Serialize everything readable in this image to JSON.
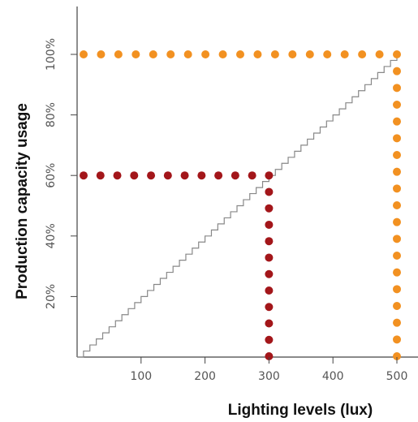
{
  "chart_data": {
    "type": "line",
    "xlabel": "Lighting levels (lux)",
    "ylabel": "Production capacity usage",
    "xlim": [
      0,
      520
    ],
    "ylim": [
      0,
      104
    ],
    "x_ticks": [
      {
        "value": 100,
        "label": "100"
      },
      {
        "value": 200,
        "label": "200"
      },
      {
        "value": 300,
        "label": "300"
      },
      {
        "value": 400,
        "label": "400"
      },
      {
        "value": 500,
        "label": "500"
      }
    ],
    "y_ticks": [
      {
        "value": 20,
        "label": "20%"
      },
      {
        "value": 40,
        "label": "40%"
      },
      {
        "value": 60,
        "label": "60%"
      },
      {
        "value": 80,
        "label": "80%"
      },
      {
        "value": 100,
        "label": "100%"
      }
    ],
    "grid": false,
    "legend": "none",
    "series": [
      {
        "style": "staircase",
        "color": "#888888",
        "points": [
          {
            "x": 0,
            "y": 0
          },
          {
            "x": 500,
            "y": 100
          }
        ]
      },
      {
        "style": "dotted-guide",
        "color": "#a3161a",
        "points": [
          {
            "x": 0,
            "y": 60
          },
          {
            "x": 300,
            "y": 60
          },
          {
            "x": 300,
            "y": 0
          }
        ]
      },
      {
        "style": "dotted-guide",
        "color": "#f29121",
        "points": [
          {
            "x": 0,
            "y": 100
          },
          {
            "x": 500,
            "y": 100
          },
          {
            "x": 500,
            "y": 0
          }
        ]
      }
    ]
  }
}
